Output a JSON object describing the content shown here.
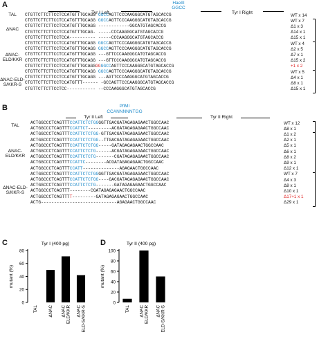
{
  "panelA": {
    "label": "A",
    "header_left": "Tyr I Left",
    "header_right": "Tyr I Right",
    "site_name": "HaeIII",
    "site_seq": "GGCC",
    "rows": [
      {
        "group": "TAL",
        "pre": "CTGTTCTTCTTCCTCCATGTTTGCAGG ",
        "blue": "GGCC",
        "post": "AGTTCCCAAGGGCATGTAGCACCG",
        "count": "WT x 14"
      },
      {
        "group": "ΔNAC",
        "pre": "CTGTTCTTCTTCCTCCATGTTTGCAGG ",
        "blue": "GGCC",
        "post": "AGTTCCCAAGGGCATGTAGCACCG",
        "count": "WT x 7"
      },
      {
        "group": "",
        "pre": "CTGTTCTTCTTCCTCCATGTTTGCAGG ",
        "blue": "",
        "post": "------------GGCATGTAGCACCG",
        "count": "Δ1 x 3"
      },
      {
        "group": "",
        "pre": "CTGTTCTTCTTCCTCCATGTTTGCAG- ",
        "blue": "",
        "post": "-----CCCAAGGGCATGTAGCACCG",
        "count": "Δ14 x 1"
      },
      {
        "group": "",
        "pre": "CTGTTCTTCTTCCTCCA---------- ",
        "blue": "",
        "post": "-----CCCAAGGGCATGTAGCACCG",
        "count": "Δ15 x 1"
      },
      {
        "group": "ΔNAC-ELD/KKR",
        "pre": "CTGTTCTTCTTCCTCCATGTTTGCAGG ",
        "blue": "GGCC",
        "post": "AGTTCCCAAGGGCATGTAGCACCG",
        "count": "WT x 4"
      },
      {
        "group": "",
        "pre": "CTGTTCTTCTTCCTCCATGTTTGCAGG ",
        "blue": "GGCC",
        "post": "AGTTCCCAAGGGCATGTAGCACCG",
        "count": "Δ2 x 5"
      },
      {
        "group": "",
        "pre": "CTGTTCTTCTTCCTCCATGTTTGCAGG ",
        "blue": "",
        "post": "---GTTCCCAAGGGCATGTAGCACCG",
        "count": "Δ7 x 1"
      },
      {
        "group": "",
        "pre": "CTGTTCTTCTTCCTCCATGTTTGCAGG ",
        "blue": "",
        "post": "---GTTCCCAAGGGCATGTAGCACCG",
        "count": "Δ15 x 2"
      },
      {
        "group": "",
        "pre": "CTGTTCTTCTTCCTCCATGTTTGCAGG",
        "red": "GG",
        "blue": "GGCC",
        "post": "AGTTCCCAAGGGCATGTAGCACCG",
        "count": "+1 x 2",
        "red_count": true
      },
      {
        "group": "ΔNAC-ELD-S/KKR-S",
        "pre": "CTGTTCTTCTTCCTCCATGTTTGCAGG ",
        "blue": "GGCC",
        "post": "AGTTCCCAAGGGCATGTAGCACCG",
        "count": "WT x 5"
      },
      {
        "group": "",
        "pre": "CTGTTCTTCTTCCTCCATGTTTGCAGG ",
        "blue": "",
        "post": "---AGTTCCCAAGGGCATGTAGCACCG",
        "count": "Δ4 x 1"
      },
      {
        "group": "",
        "pre": "CTGTTCTTCTTCCTCCATGTTT------ ",
        "blue": "",
        "post": "-GCCAGTTCCCAAGGGCATGTAGCACCG",
        "count": "Δ8 x 1"
      },
      {
        "group": "",
        "pre": "CTGTTCTTCTTCCTCC----------- ",
        "blue": "",
        "post": "--CCCAAGGGCATGTAGCACCG",
        "count": "Δ15 x 1"
      }
    ]
  },
  "panelB": {
    "label": "B",
    "header_left": "Tyr II Left",
    "header_right": "Tyr II Right",
    "site_name": "PflMI",
    "site_seq": "CCANNNNNTGG",
    "rows": [
      {
        "group": "TAL",
        "pre": "ACTGGCCCTCAGTTT",
        "blue": "CCATTCTCTGG",
        "post": "GGTTGACGATAGAGAGAACTGGCCAAC",
        "count": "WT x 12"
      },
      {
        "group": "",
        "pre": "ACTGGCCCTCAGTTT",
        "blue": "CCATTCT",
        "post": "---------ACGATAGAGAGAACTGGCCAAC",
        "count": "Δ8 x 1"
      },
      {
        "group": "ΔNAC-ELD/KKR",
        "pre": "ACTGGCCCTCAGTTT",
        "blue": "CCATTCTCTGG",
        "post": "-GTTGACGATAGAGAGAACTGGCCAAC",
        "count": "Δ1 x 2"
      },
      {
        "group": "",
        "pre": "ACTGGCCCTCAGTTT",
        "blue": "CCATTCTCTGG",
        "post": "--TTGACGATAGAGAGAACTGGCCAAC",
        "count": "Δ2 x 1"
      },
      {
        "group": "",
        "pre": "ACTGGCCCTCAGTTT",
        "blue": "CCATTCTCTGG",
        "post": "-----GATAGAGAGAACTGGCCAAC",
        "count": "Δ5 x 1"
      },
      {
        "group": "",
        "pre": "ACTGGCCCTCAGTTT",
        "blue": "CCATTCTCTG",
        "post": "------ACGATAGAGAGAACTGGCCAAC",
        "count": "Δ6 x 1"
      },
      {
        "group": "",
        "pre": "ACTGGCCCTCAGTTT",
        "blue": "CCATTCTCTG",
        "post": "-------CGATAGAGAGAACTGGCCAAC",
        "count": "Δ8 x 2"
      },
      {
        "group": "",
        "pre": "ACTGGCCCTCAGTTT",
        "blue": "CCATTC",
        "post": "--------ACGATAGAGAGAACTGGCCAAC",
        "count": "Δ9 x 1"
      },
      {
        "group": "",
        "pre": "ACTGGCCCTCAGTTT",
        "blue": "CCATT",
        "post": "--------------AGAGAACTGGCCAAC",
        "count": "Δ12 x 1"
      },
      {
        "group": "ΔNAC-ELD-S/KKR-S",
        "pre": "ACTGGCCCTCAGTTT",
        "blue": "CCATTCTCTGG",
        "post": "GGTTGACGATAGAGAGAACTGGCCAAC",
        "count": "WT x 7"
      },
      {
        "group": "",
        "pre": "ACTGGCCCTCAGTTT",
        "blue": "CCATTCTCTGG",
        "post": "----GACGATAGAGAGAACTGGCCAAC",
        "count": "Δ4 x 3"
      },
      {
        "group": "",
        "pre": "ACTGGCCCTCAGTTT",
        "blue": "CCATTCTCTG",
        "post": "-------GATAGAGAGAACTGGCCAAC",
        "count": "Δ8 x 1"
      },
      {
        "group": "",
        "pre": "ACTGGCCCTCAGTTT",
        "blue": "",
        "post": "--------CGATAGAGAGAACTGGCCAAC",
        "count": "Δ10 x 1"
      },
      {
        "group": "",
        "pre": "ACTGGCCCTCAGTTT",
        "red": "T",
        "blue": "",
        "post": "---------GATAGAGAGAACTGGCCAAC",
        "count": "Δ17+1 x 1",
        "red_count": true
      },
      {
        "group": "",
        "pre": "ACTG----------------------------",
        "blue": "",
        "post": "-AGAGAACTGGCCAAC",
        "count": "Δ29 x 1"
      }
    ]
  },
  "chart_data": [
    {
      "type": "bar",
      "panel": "C",
      "title": "Tyr I (400 pg)",
      "ylabel": "mutant (%)",
      "ylim": [
        0,
        80
      ],
      "yticks": [
        0,
        20,
        40,
        60,
        80
      ],
      "categories": [
        "TAL",
        "ΔNAC",
        "ΔNAC ELD/KKR",
        "ΔNAC ELD-S/KKR-S"
      ],
      "values": [
        0,
        50,
        71,
        42
      ]
    },
    {
      "type": "bar",
      "panel": "D",
      "title": "Tyr II (400 pg)",
      "ylabel": "mutant (%)",
      "ylim": [
        0,
        100
      ],
      "yticks": [
        0,
        20,
        40,
        60,
        80,
        100
      ],
      "categories": [
        "TAL",
        "ΔNAC ELD/KKR",
        "ΔNAC ELD-S/KKR-S"
      ],
      "values": [
        7,
        100,
        50
      ]
    }
  ],
  "colors": {
    "site": "#1a88c9",
    "insertion": "#e02424",
    "bar": "#000000"
  }
}
